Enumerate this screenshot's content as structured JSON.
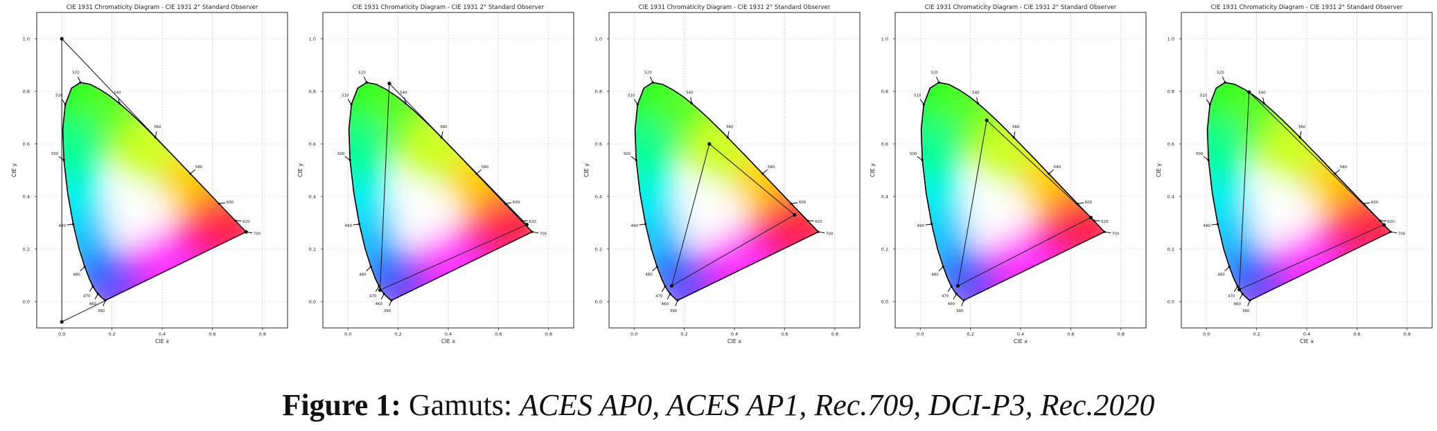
{
  "caption": {
    "label": "Figure 1:",
    "text": " Gamuts: ",
    "list": "ACES AP0, ACES AP1, Rec.709, DCI-P3, Rec.2020"
  },
  "chart_data": [
    {
      "type": "scatter",
      "title": "CIE 1931 Chromaticity Diagram - CIE 1931 2° Standard Observer",
      "xlabel": "CIE x",
      "ylabel": "CIE y",
      "xlim": [
        -0.1,
        0.9
      ],
      "ylim": [
        -0.1,
        1.1
      ],
      "xticks": [
        "0.0",
        "0.2",
        "0.4",
        "0.6",
        "0.8"
      ],
      "yticks": [
        "0.0",
        "0.2",
        "0.4",
        "0.6",
        "0.8",
        "1.0"
      ],
      "grid": true,
      "locus_labels": [
        "390",
        "460",
        "470",
        "480",
        "490",
        "500",
        "510",
        "520",
        "540",
        "560",
        "580",
        "600",
        "620",
        "700"
      ],
      "gamut": [
        [
          0.7347,
          0.2653
        ],
        [
          0.0,
          1.0
        ],
        [
          0.0001,
          -0.077
        ]
      ]
    },
    {
      "type": "scatter",
      "title": "CIE 1931 Chromaticity Diagram - CIE 1931 2° Standard Observer",
      "xlabel": "CIE x",
      "ylabel": "CIE y",
      "xlim": [
        -0.1,
        0.9
      ],
      "ylim": [
        -0.1,
        1.1
      ],
      "xticks": [
        "0.0",
        "0.2",
        "0.4",
        "0.6",
        "0.8"
      ],
      "yticks": [
        "0.0",
        "0.2",
        "0.4",
        "0.6",
        "0.8",
        "1.0"
      ],
      "grid": true,
      "locus_labels": [
        "390",
        "460",
        "470",
        "480",
        "490",
        "500",
        "510",
        "520",
        "540",
        "560",
        "580",
        "600",
        "620",
        "700"
      ],
      "gamut": [
        [
          0.713,
          0.293
        ],
        [
          0.165,
          0.83
        ],
        [
          0.128,
          0.044
        ]
      ]
    },
    {
      "type": "scatter",
      "title": "CIE 1931 Chromaticity Diagram - CIE 1931 2° Standard Observer",
      "xlabel": "CIE x",
      "ylabel": "CIE y",
      "xlim": [
        -0.1,
        0.9
      ],
      "ylim": [
        -0.1,
        1.1
      ],
      "xticks": [
        "0.0",
        "0.2",
        "0.4",
        "0.6",
        "0.8"
      ],
      "yticks": [
        "0.0",
        "0.2",
        "0.4",
        "0.6",
        "0.8",
        "1.0"
      ],
      "grid": true,
      "locus_labels": [
        "390",
        "460",
        "470",
        "480",
        "490",
        "500",
        "510",
        "520",
        "540",
        "560",
        "580",
        "600",
        "620",
        "700"
      ],
      "gamut": [
        [
          0.64,
          0.33
        ],
        [
          0.3,
          0.6
        ],
        [
          0.15,
          0.06
        ]
      ]
    },
    {
      "type": "scatter",
      "title": "CIE 1931 Chromaticity Diagram - CIE 1931 2° Standard Observer",
      "xlabel": "CIE x",
      "ylabel": "CIE y",
      "xlim": [
        -0.1,
        0.9
      ],
      "ylim": [
        -0.1,
        1.1
      ],
      "xticks": [
        "0.0",
        "0.2",
        "0.4",
        "0.6",
        "0.8"
      ],
      "yticks": [
        "0.0",
        "0.2",
        "0.4",
        "0.6",
        "0.8",
        "1.0"
      ],
      "grid": true,
      "locus_labels": [
        "390",
        "460",
        "470",
        "480",
        "490",
        "500",
        "510",
        "520",
        "540",
        "560",
        "580",
        "600",
        "620",
        "700"
      ],
      "gamut": [
        [
          0.68,
          0.32
        ],
        [
          0.265,
          0.69
        ],
        [
          0.15,
          0.06
        ]
      ]
    },
    {
      "type": "scatter",
      "title": "CIE 1931 Chromaticity Diagram - CIE 1931 2° Standard Observer",
      "xlabel": "CIE x",
      "ylabel": "CIE y",
      "xlim": [
        -0.1,
        0.9
      ],
      "ylim": [
        -0.1,
        1.1
      ],
      "xticks": [
        "0.0",
        "0.2",
        "0.4",
        "0.6",
        "0.8"
      ],
      "yticks": [
        "0.0",
        "0.2",
        "0.4",
        "0.6",
        "0.8",
        "1.0"
      ],
      "grid": true,
      "locus_labels": [
        "390",
        "460",
        "470",
        "480",
        "490",
        "500",
        "510",
        "520",
        "540",
        "560",
        "580",
        "600",
        "620",
        "700"
      ],
      "gamut": [
        [
          0.708,
          0.292
        ],
        [
          0.17,
          0.797
        ],
        [
          0.131,
          0.046
        ]
      ]
    }
  ]
}
